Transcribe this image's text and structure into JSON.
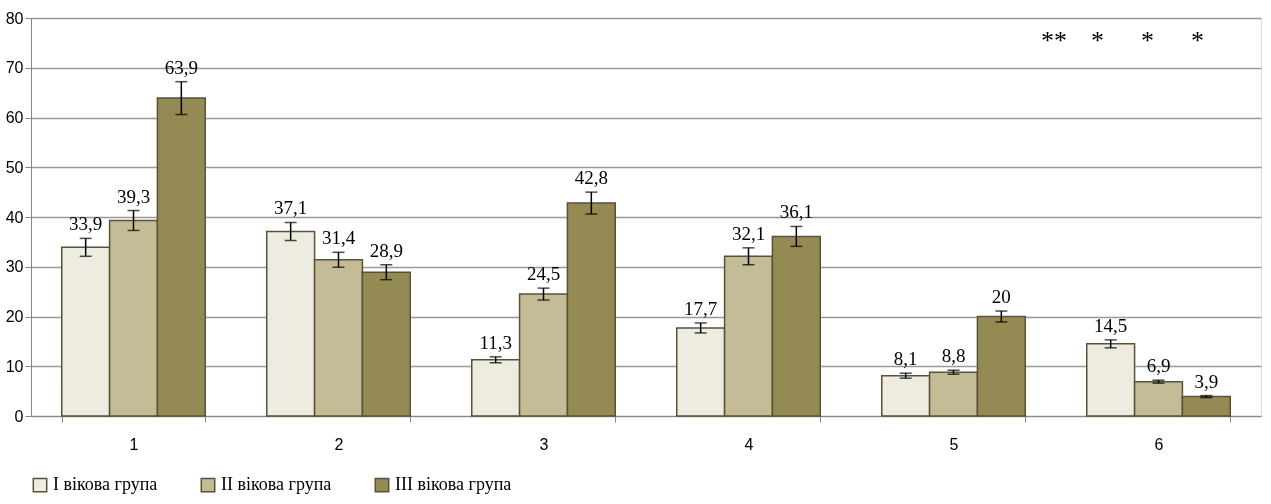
{
  "chart_data": {
    "type": "bar",
    "categories": [
      "1",
      "2",
      "3",
      "4",
      "5",
      "6"
    ],
    "series": [
      {
        "name": "I вікова група",
        "color": "#eeebe0",
        "values": [
          33.9,
          37.1,
          11.3,
          17.7,
          8.1,
          14.5
        ],
        "errors": [
          1.8,
          1.8,
          0.6,
          1,
          0.5,
          0.8
        ],
        "value_labels": [
          "33,9",
          "37,1",
          "11,3",
          "17,7",
          "8,1",
          "14,5"
        ]
      },
      {
        "name": "II вікова група",
        "color": "#c4bc96",
        "values": [
          39.3,
          31.4,
          24.5,
          32.1,
          8.8,
          6.9
        ],
        "errors": [
          2,
          1.5,
          1.2,
          1.7,
          0.4,
          0.3
        ],
        "value_labels": [
          "39,3",
          "31,4",
          "24,5",
          "32,1",
          "8,8",
          "6,9"
        ]
      },
      {
        "name": "III вікова група",
        "color": "#948a54",
        "values": [
          63.9,
          28.9,
          42.8,
          36.1,
          20,
          3.9
        ],
        "errors": [
          3.3,
          1.5,
          2.2,
          2,
          1.1,
          0.2
        ],
        "value_labels": [
          "63,9",
          "28,9",
          "42,8",
          "36,1",
          "20",
          "3,9"
        ]
      }
    ],
    "ylim": [
      0,
      80
    ],
    "yticks": [
      0,
      10,
      20,
      30,
      40,
      50,
      60,
      70,
      80
    ],
    "grid": "y",
    "legend": "bottom",
    "annotations": [
      "**",
      "*",
      "*",
      "*"
    ]
  }
}
